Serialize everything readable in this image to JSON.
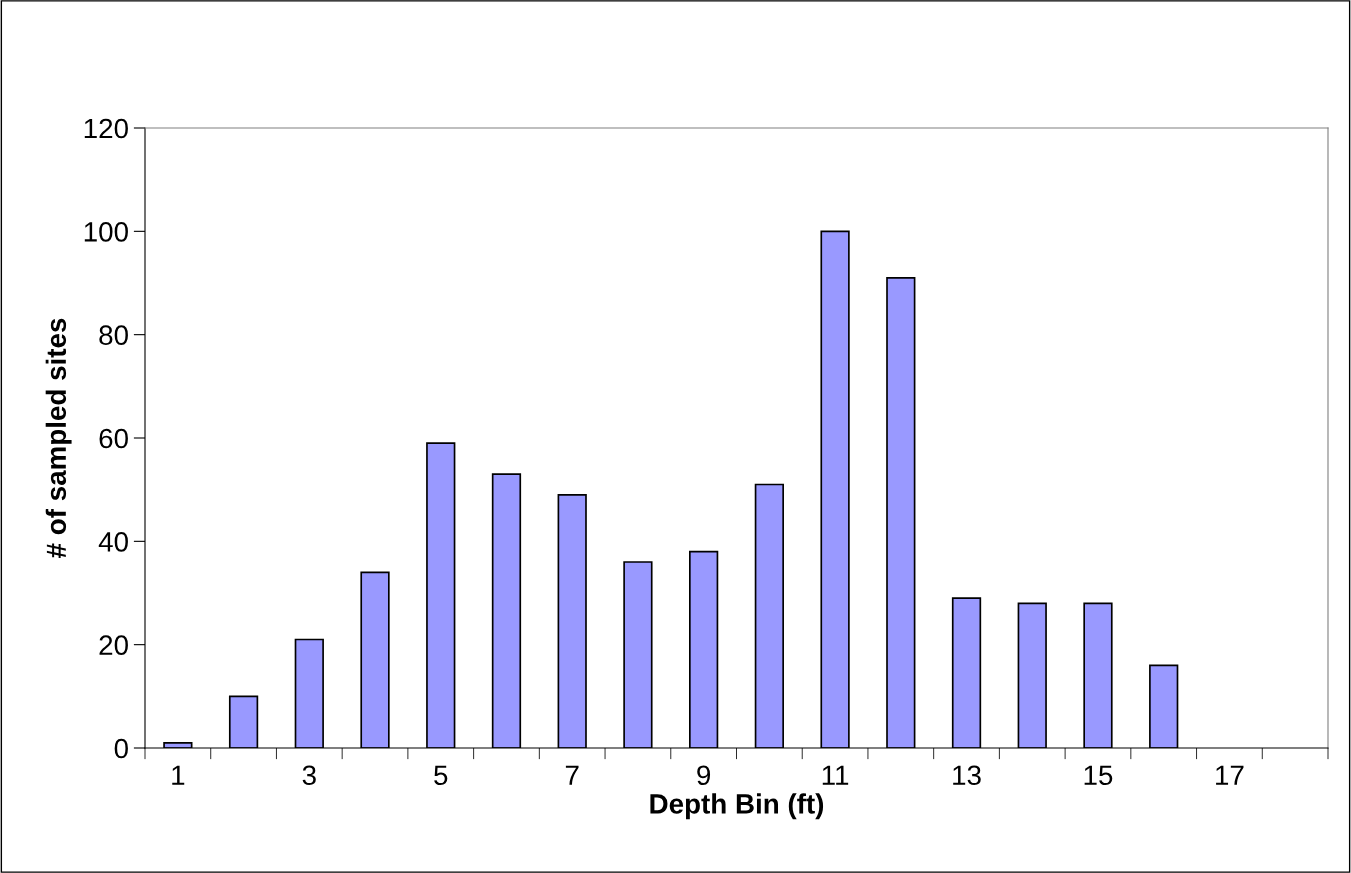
{
  "chart_data": {
    "type": "bar",
    "xlabel": "Depth Bin (ft)",
    "ylabel": "# of sampled sites",
    "categories": [
      "1",
      null,
      "3",
      null,
      "5",
      null,
      "7",
      null,
      "9",
      null,
      "11",
      null,
      "13",
      null,
      "15",
      null,
      "17",
      null
    ],
    "values": [
      1,
      10,
      21,
      34,
      59,
      53,
      49,
      36,
      38,
      51,
      100,
      91,
      29,
      28,
      28,
      16,
      0,
      0
    ],
    "color": "#9999ff",
    "ylim": [
      0,
      120
    ],
    "yticks": [
      0,
      20,
      40,
      60,
      80,
      100,
      120
    ],
    "grid": false,
    "legend": false
  }
}
